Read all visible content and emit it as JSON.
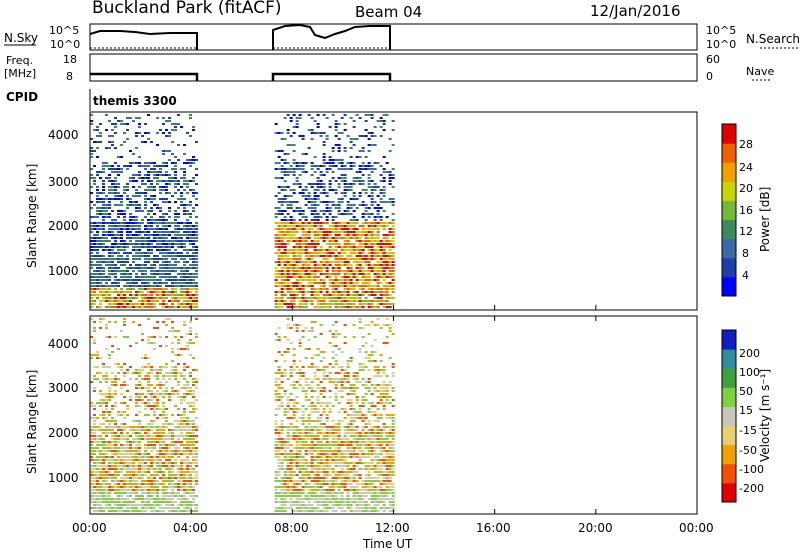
{
  "header": {
    "station": "Buckland Park (fitACF)",
    "beam": "Beam 04",
    "date": "12/Jan/2016"
  },
  "noise_panel": {
    "left_label": "N.Sky",
    "left_ticks": [
      "10^5",
      "10^0"
    ],
    "right_ticks": [
      "10^5",
      "10^0"
    ],
    "right_label": "N.Search"
  },
  "freq_panel": {
    "left_label_1": "Freq.",
    "left_label_2": "[MHz]",
    "left_ticks": [
      "18",
      "8"
    ],
    "right_ticks": [
      "60",
      "0"
    ],
    "right_label": "Nave"
  },
  "cpid": {
    "label": "CPID",
    "value": "themis 3300"
  },
  "x_axis": {
    "label": "Time UT",
    "ticks": [
      "00:00",
      "04:00",
      "08:00",
      "12:00",
      "16:00",
      "20:00",
      "00:00"
    ],
    "range_hours": [
      0,
      24
    ]
  },
  "y_axis": {
    "label": "Slant Range [km]",
    "ticks": [
      "1000",
      "2000",
      "3000",
      "4000"
    ],
    "range_km": [
      180,
      4600
    ]
  },
  "power_colorbar": {
    "label": "Power [dB]",
    "ticks": [
      "28",
      "24",
      "20",
      "16",
      "12",
      "8",
      "4"
    ],
    "range": [
      0,
      32
    ],
    "colors": [
      "#0000ff",
      "#1f3fa8",
      "#3a6aa8",
      "#3f8a5a",
      "#72b83a",
      "#c8d400",
      "#f2a000",
      "#f06000",
      "#e00000"
    ]
  },
  "velocity_colorbar": {
    "label": "Velocity [m s⁻¹]",
    "ticks": [
      "200",
      "100",
      "50",
      "15",
      "-15",
      "-50",
      "-100",
      "-200"
    ],
    "colors": [
      "#1020c0",
      "#2f8fa0",
      "#3f9f3f",
      "#7fd040",
      "#c8c8b8",
      "#e8d070",
      "#f0a000",
      "#f05000",
      "#e00000"
    ]
  },
  "chart_data": [
    {
      "type": "line",
      "name": "N.Sky noise",
      "x_hours": [
        0,
        4.2,
        7.3,
        12.0
      ],
      "segments": [
        [
          0,
          4.2
        ],
        [
          7.3,
          12.0
        ]
      ]
    },
    {
      "type": "line",
      "name": "Freq",
      "segments": [
        [
          0,
          4.2
        ],
        [
          7.3,
          12.0
        ]
      ],
      "value_mhz": 10
    },
    {
      "type": "heatmap",
      "name": "Power",
      "x_segments_hours": [
        [
          0,
          4.2
        ],
        [
          7.3,
          12.0
        ]
      ],
      "y_range_km": [
        180,
        4600
      ]
    },
    {
      "type": "heatmap",
      "name": "Velocity",
      "x_segments_hours": [
        [
          0,
          4.2
        ],
        [
          7.3,
          12.0
        ]
      ],
      "y_range_km": [
        180,
        4600
      ]
    }
  ]
}
